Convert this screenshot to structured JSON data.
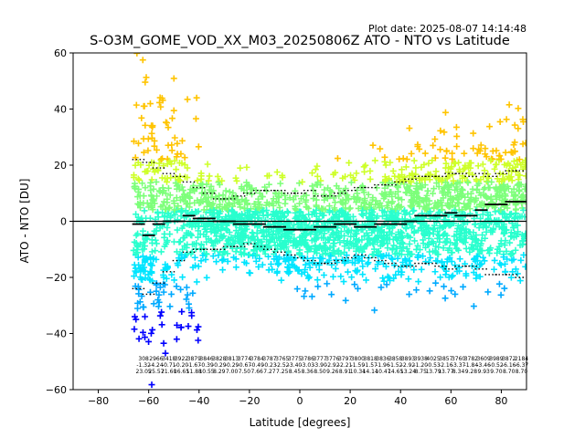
{
  "chart_data": {
    "type": "scatter",
    "plot_date": "Plot date: 2025-08-07 14:14:48",
    "title": "S-O3M_GOME_VOD_XX_M03_20250806Z ATO - NTO vs Latitude",
    "xlabel": "Latitude [degrees]",
    "ylabel": "ATO - NTO [DU]",
    "xlim": [
      -90,
      90
    ],
    "ylim": [
      -60,
      60
    ],
    "xticks": [
      -80,
      -60,
      -40,
      -20,
      0,
      20,
      40,
      60,
      80
    ],
    "yticks": [
      -60,
      -40,
      -20,
      0,
      20,
      40,
      60
    ],
    "grid": false,
    "zero_line": 0,
    "colors": {
      "blue": "#0000ff",
      "light_blue": "#00aaff",
      "cyan": "#00e5ff",
      "aquamarine": "#29ffce",
      "green": "#7dff7a",
      "yellow_green": "#ceff29",
      "orange": "#ffc400",
      "dark": "#000000"
    },
    "bins": {
      "lat": [
        -64,
        -60,
        -56,
        -52,
        -48,
        -44,
        -40,
        -36,
        -32,
        -28,
        -24,
        -20,
        -16,
        -12,
        -8,
        -4,
        0,
        4,
        8,
        12,
        16,
        20,
        24,
        28,
        32,
        36,
        40,
        44,
        48,
        52,
        56,
        60,
        64,
        68,
        72,
        76,
        80,
        84,
        88
      ],
      "mean": [
        -1,
        -5,
        -1,
        0,
        0,
        2,
        1,
        1,
        0,
        0,
        -1,
        -1,
        -1,
        -2,
        -2,
        -3,
        -3,
        -3,
        -2,
        -2,
        -1,
        -1,
        -2,
        -2,
        -1,
        -1,
        -1,
        0,
        2,
        2,
        2,
        3,
        2,
        2,
        4,
        6,
        6,
        7,
        7
      ],
      "upper": [
        22,
        21,
        19,
        17,
        16,
        14,
        12,
        10,
        8,
        8,
        9,
        10,
        11,
        11,
        11,
        10,
        10,
        11,
        9,
        9,
        10,
        11,
        12,
        12,
        13,
        13,
        14,
        15,
        16,
        16,
        16,
        17,
        17,
        16,
        17,
        16,
        17,
        18,
        18
      ],
      "lower": [
        -24,
        -26,
        -22,
        -18,
        -14,
        -11,
        -10,
        -10,
        -10,
        -9,
        -9,
        -8,
        -9,
        -10,
        -11,
        -12,
        -13,
        -14,
        -15,
        -15,
        -14,
        -13,
        -12,
        -13,
        -14,
        -15,
        -16,
        -16,
        -15,
        -15,
        -16,
        -17,
        -16,
        -16,
        -17,
        -19,
        -19,
        -19,
        -20
      ]
    },
    "bin_stats": {
      "row1": [
        "308",
        "2966",
        "3418",
        "3922",
        "3879",
        "3846",
        "3828",
        "3813",
        "3774",
        "3784",
        "3787",
        "3765",
        "3775",
        "3786",
        "3777",
        "3776",
        "3797",
        "3800",
        "3818",
        "3836",
        "3858",
        "3893",
        "3938",
        "4025",
        "3857",
        "3760",
        "3782",
        "3609",
        "3989",
        "3872",
        "2184"
      ],
      "row2": [
        "-1.32",
        "-4.24",
        "-0.71",
        "-0.20",
        "-1.67",
        "-0.39",
        "-0.29",
        "-0.29",
        "-0.67",
        "-0.49",
        "-0.23",
        "-2.52",
        "-3.40",
        "-3.03",
        "-3.90",
        "-2.92",
        "-2.21",
        "-1.59",
        "-1.57",
        "-1.96",
        "-1.52",
        "-2.92",
        "-1.20",
        "-0.53",
        "-2.16",
        "-3.37",
        "-1.84",
        "-3.46",
        "-0.52",
        "-6.16",
        "-6.37"
      ],
      "row3": [
        "23.05",
        "25.57",
        "21.60",
        "16.65",
        "11.88",
        "10.55",
        "8.29",
        "7.00",
        "7.50",
        "7.66",
        "7.27",
        "7.25",
        "8.45",
        "8.36",
        "8.50",
        "9.26",
        "8.91",
        "10.34",
        "14.14",
        "10.47",
        "14.65",
        "13.24",
        "8.75",
        "13.79",
        "13.77",
        "8.34",
        "9.28",
        "9.93",
        "9.70",
        "8.70",
        "8.70"
      ]
    }
  }
}
